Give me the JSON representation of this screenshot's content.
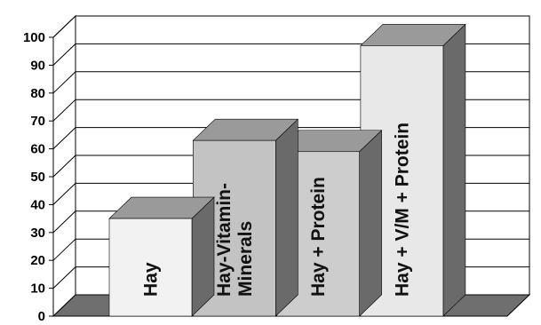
{
  "chart_data": {
    "type": "bar",
    "categories": [
      "Hay",
      "Hay-Vitamin-Minerals",
      "Hay + Protein",
      "Hay + V/M + Protein"
    ],
    "category_label_lines": [
      [
        "Hay"
      ],
      [
        "Hay-Vitamin-",
        "Minerals"
      ],
      [
        "Hay + Protein"
      ],
      [
        "Hay + V/M + Protein"
      ]
    ],
    "values": [
      35,
      63,
      59,
      97
    ],
    "ylim": [
      0,
      100
    ],
    "yticks": [
      "0",
      "10",
      "20",
      "30",
      "40",
      "50",
      "60",
      "70",
      "80",
      "90",
      "100"
    ],
    "grid": true,
    "bar_colors": {
      "front": [
        "#f2f2f2",
        "#c3c3c3",
        "#cdcdcd",
        "#e8e8e8"
      ],
      "top": "#9a9a9a",
      "side": "#6a6a6a"
    },
    "wall_color": "#ffffff",
    "floor_color": "#6f6f6f"
  }
}
